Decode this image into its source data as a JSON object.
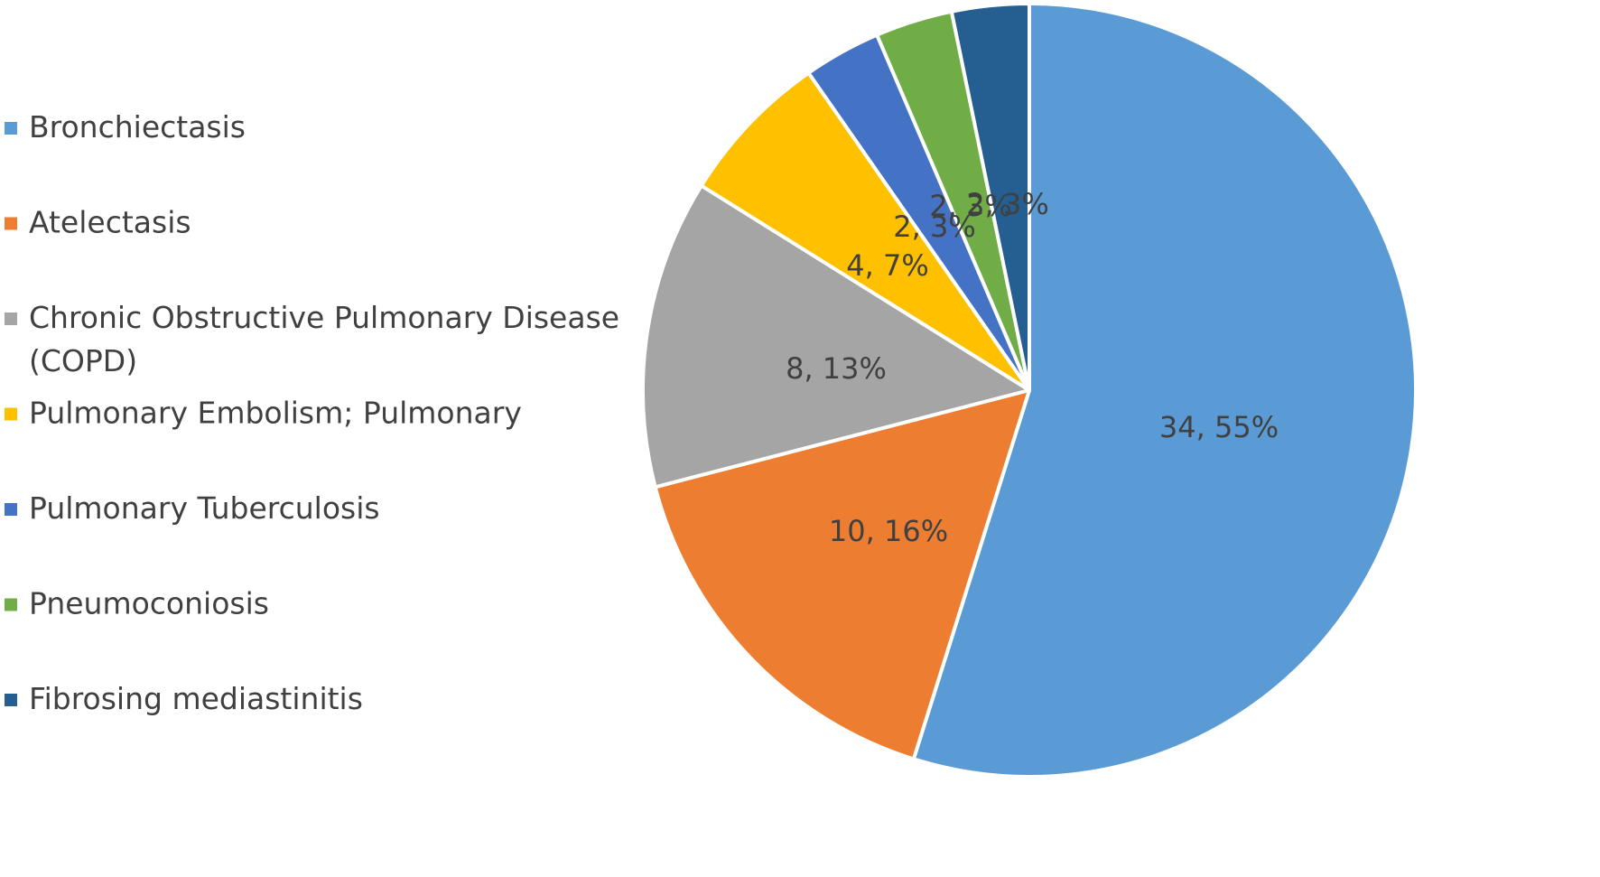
{
  "chart_data": {
    "type": "pie",
    "title": "",
    "categories": [
      "Bronchiectasis",
      "Atelectasis",
      "Chronic Obstructive Pulmonary Disease (COPD)",
      "Pulmonary Embolism; Pulmonary",
      "Pulmonary Tuberculosis",
      "Pneumoconiosis",
      "Fibrosing mediastinitis"
    ],
    "legend_lines": [
      [
        "Bronchiectasis"
      ],
      [
        "Atelectasis"
      ],
      [
        "Chronic Obstructive Pulmonary Disease",
        "(COPD)"
      ],
      [
        "Pulmonary Embolism; Pulmonary"
      ],
      [
        "Pulmonary Tuberculosis"
      ],
      [
        "Pneumoconiosis"
      ],
      [
        "Fibrosing mediastinitis"
      ]
    ],
    "values": [
      34,
      10,
      8,
      4,
      2,
      2,
      2
    ],
    "percentages": [
      55,
      16,
      13,
      7,
      3,
      3,
      3
    ],
    "data_labels": [
      "34, 55%",
      "10, 16%",
      "8, 13%",
      "4, 7%",
      "2, 3%",
      "2, 3%",
      "2, 3%"
    ],
    "colors": [
      "#5b9bd5",
      "#ed7d31",
      "#a5a5a5",
      "#ffc000",
      "#4472c4",
      "#70ad47",
      "#255e91"
    ],
    "start_angle_deg": 0,
    "direction": "clockwise",
    "legend_position": "left"
  }
}
